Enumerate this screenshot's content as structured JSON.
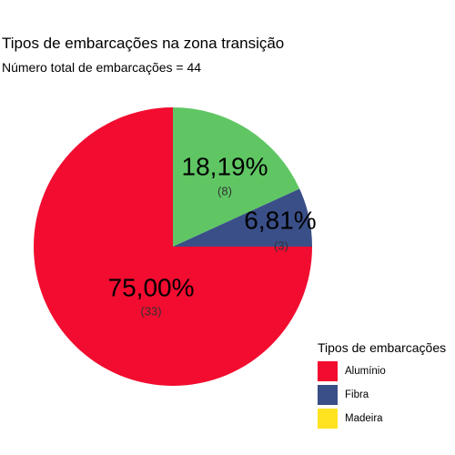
{
  "chart_data": {
    "type": "pie",
    "title": "Tipos de embarcações na zona transição",
    "subtitle": "Número total de embarcações = 44",
    "legend_title": "Tipos de embarcações",
    "legend_position": "bottom-right",
    "slices": [
      {
        "category": "Alumínio",
        "count": 33,
        "percent_label": "75,00%",
        "count_label": "(33)",
        "color": "#F20C2F"
      },
      {
        "category": "Fibra",
        "count": 3,
        "percent_label": "6,81%",
        "count_label": "(3)",
        "color": "#3A4F88"
      },
      {
        "category": "Madeira",
        "count": 0,
        "percent_label": "",
        "count_label": "",
        "color": "#FFE320"
      },
      {
        "category": "",
        "count": 8,
        "percent_label": "18,19%",
        "count_label": "(8)",
        "color": "#5FC663"
      }
    ]
  }
}
